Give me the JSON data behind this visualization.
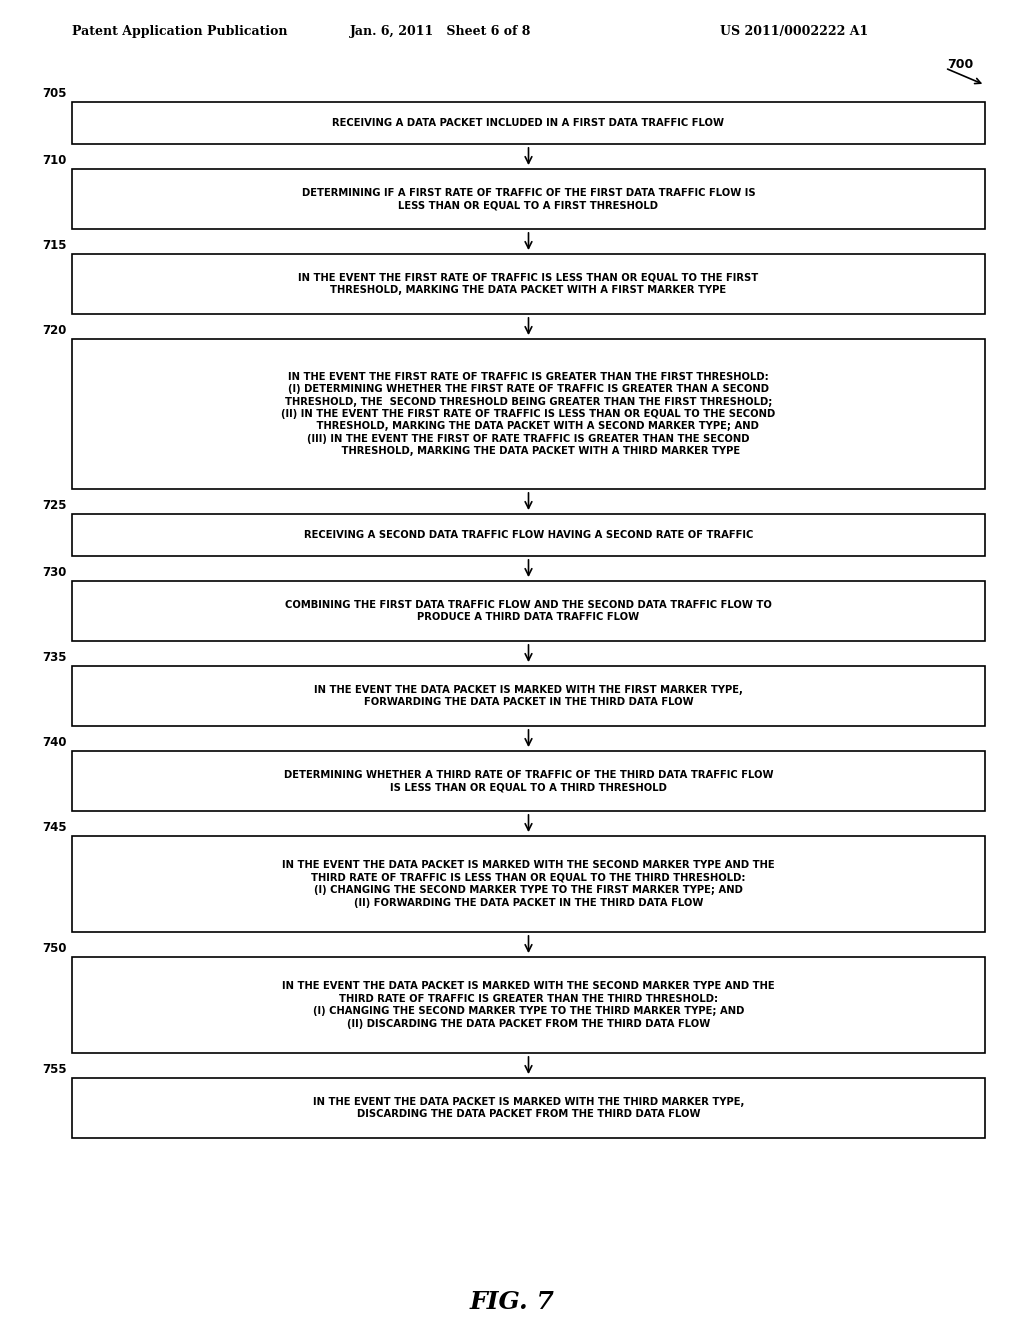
{
  "header_left": "Patent Application Publication",
  "header_mid": "Jan. 6, 2011   Sheet 6 of 8",
  "header_right": "US 2011/0002222 A1",
  "fig_label": "FIG. 7",
  "diagram_label": "700",
  "background_color": "#ffffff",
  "boxes": [
    {
      "id": "705",
      "label": "705",
      "text": "RECEIVING A DATA PACKET INCLUDED IN A FIRST DATA TRAFFIC FLOW",
      "lines": 1
    },
    {
      "id": "710",
      "label": "710",
      "text": "DETERMINING IF A FIRST RATE OF TRAFFIC OF THE FIRST DATA TRAFFIC FLOW IS\nLESS THAN OR EQUAL TO A FIRST THRESHOLD",
      "lines": 2
    },
    {
      "id": "715",
      "label": "715",
      "text": "IN THE EVENT THE FIRST RATE OF TRAFFIC IS LESS THAN OR EQUAL TO THE FIRST\nTHRESHOLD, MARKING THE DATA PACKET WITH A FIRST MARKER TYPE",
      "lines": 2
    },
    {
      "id": "720",
      "label": "720",
      "text": "IN THE EVENT THE FIRST RATE OF TRAFFIC IS GREATER THAN THE FIRST THRESHOLD:\n(I) DETERMINING WHETHER THE FIRST RATE OF TRAFFIC IS GREATER THAN A SECOND\nTHRESHOLD, THE  SECOND THRESHOLD BEING GREATER THAN THE FIRST THRESHOLD;\n(II) IN THE EVENT THE FIRST RATE OF TRAFFIC IS LESS THAN OR EQUAL TO THE SECOND\n     THRESHOLD, MARKING THE DATA PACKET WITH A SECOND MARKER TYPE; AND\n(III) IN THE EVENT THE FIRST OF RATE TRAFFIC IS GREATER THAN THE SECOND\n       THRESHOLD, MARKING THE DATA PACKET WITH A THIRD MARKER TYPE",
      "lines": 7
    },
    {
      "id": "725",
      "label": "725",
      "text": "RECEIVING A SECOND DATA TRAFFIC FLOW HAVING A SECOND RATE OF TRAFFIC",
      "lines": 1
    },
    {
      "id": "730",
      "label": "730",
      "text": "COMBINING THE FIRST DATA TRAFFIC FLOW AND THE SECOND DATA TRAFFIC FLOW TO\nPRODUCE A THIRD DATA TRAFFIC FLOW",
      "lines": 2
    },
    {
      "id": "735",
      "label": "735",
      "text": "IN THE EVENT THE DATA PACKET IS MARKED WITH THE FIRST MARKER TYPE,\nFORWARDING THE DATA PACKET IN THE THIRD DATA FLOW",
      "lines": 2
    },
    {
      "id": "740",
      "label": "740",
      "text": "DETERMINING WHETHER A THIRD RATE OF TRAFFIC OF THE THIRD DATA TRAFFIC FLOW\nIS LESS THAN OR EQUAL TO A THIRD THRESHOLD",
      "lines": 2
    },
    {
      "id": "745",
      "label": "745",
      "text": "IN THE EVENT THE DATA PACKET IS MARKED WITH THE SECOND MARKER TYPE AND THE\nTHIRD RATE OF TRAFFIC IS LESS THAN OR EQUAL TO THE THIRD THRESHOLD:\n(I) CHANGING THE SECOND MARKER TYPE TO THE FIRST MARKER TYPE; AND\n(II) FORWARDING THE DATA PACKET IN THE THIRD DATA FLOW",
      "lines": 4
    },
    {
      "id": "750",
      "label": "750",
      "text": "IN THE EVENT THE DATA PACKET IS MARKED WITH THE SECOND MARKER TYPE AND THE\nTHIRD RATE OF TRAFFIC IS GREATER THAN THE THIRD THRESHOLD:\n(I) CHANGING THE SECOND MARKER TYPE TO THE THIRD MARKER TYPE; AND\n(II) DISCARDING THE DATA PACKET FROM THE THIRD DATA FLOW",
      "lines": 4
    },
    {
      "id": "755",
      "label": "755",
      "text": "IN THE EVENT THE DATA PACKET IS MARKED WITH THE THIRD MARKER TYPE,\nDISCARDING THE DATA PACKET FROM THE THIRD DATA FLOW",
      "lines": 2
    }
  ]
}
